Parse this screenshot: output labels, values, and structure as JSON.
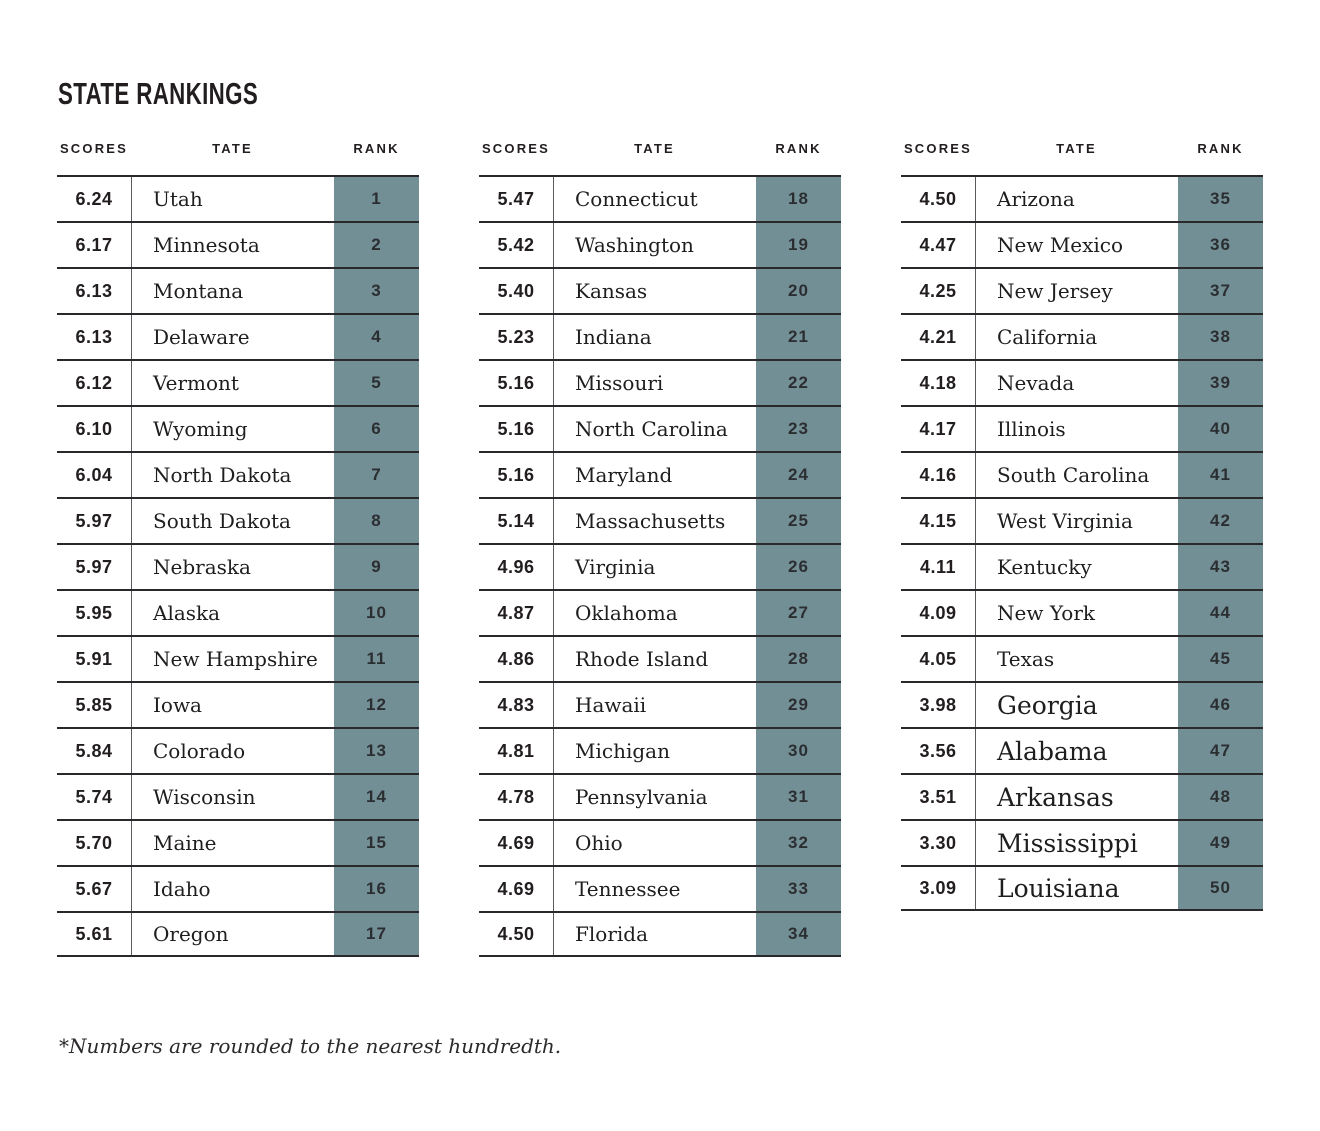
{
  "title": "STATE RANKINGS",
  "footnote": "*Numbers are rounded to the nearest hundredth.",
  "column_headers": {
    "scores": "SCORES",
    "state": "TATE",
    "rank": "RANK"
  },
  "colors": {
    "rank_cell_bg": "#738F96",
    "text": "#231F20",
    "row_line": "#2A282B"
  },
  "chart_data": {
    "type": "table",
    "title": "STATE RANKINGS",
    "columns": [
      "SCORES",
      "TATE",
      "RANK"
    ],
    "footnote": "*Numbers are rounded to the nearest hundredth.",
    "tables": [
      {
        "rows": [
          {
            "score": "6.24",
            "state": "Utah",
            "rank": "1"
          },
          {
            "score": "6.17",
            "state": "Minnesota",
            "rank": "2"
          },
          {
            "score": "6.13",
            "state": "Montana",
            "rank": "3"
          },
          {
            "score": "6.13",
            "state": "Delaware",
            "rank": "4"
          },
          {
            "score": "6.12",
            "state": "Vermont",
            "rank": "5"
          },
          {
            "score": "6.10",
            "state": "Wyoming",
            "rank": "6"
          },
          {
            "score": "6.04",
            "state": "North Dakota",
            "rank": "7"
          },
          {
            "score": "5.97",
            "state": "South Dakota",
            "rank": "8"
          },
          {
            "score": "5.97",
            "state": "Nebraska",
            "rank": "9"
          },
          {
            "score": "5.95",
            "state": "Alaska",
            "rank": "10"
          },
          {
            "score": "5.91",
            "state": "New Hampshire",
            "rank": "11"
          },
          {
            "score": "5.85",
            "state": "Iowa",
            "rank": "12"
          },
          {
            "score": "5.84",
            "state": "Colorado",
            "rank": "13"
          },
          {
            "score": "5.74",
            "state": "Wisconsin",
            "rank": "14"
          },
          {
            "score": "5.70",
            "state": "Maine",
            "rank": "15"
          },
          {
            "score": "5.67",
            "state": "Idaho",
            "rank": "16"
          },
          {
            "score": "5.61",
            "state": "Oregon",
            "rank": "17"
          }
        ]
      },
      {
        "rows": [
          {
            "score": "5.47",
            "state": "Connecticut",
            "rank": "18"
          },
          {
            "score": "5.42",
            "state": "Washington",
            "rank": "19"
          },
          {
            "score": "5.40",
            "state": "Kansas",
            "rank": "20"
          },
          {
            "score": "5.23",
            "state": "Indiana",
            "rank": "21"
          },
          {
            "score": "5.16",
            "state": "Missouri",
            "rank": "22"
          },
          {
            "score": "5.16",
            "state": "North Carolina",
            "rank": "23"
          },
          {
            "score": "5.16",
            "state": "Maryland",
            "rank": "24"
          },
          {
            "score": "5.14",
            "state": "Massachusetts",
            "rank": "25"
          },
          {
            "score": "4.96",
            "state": "Virginia",
            "rank": "26"
          },
          {
            "score": "4.87",
            "state": "Oklahoma",
            "rank": "27"
          },
          {
            "score": "4.86",
            "state": "Rhode Island",
            "rank": "28"
          },
          {
            "score": "4.83",
            "state": "Hawaii",
            "rank": "29"
          },
          {
            "score": "4.81",
            "state": "Michigan",
            "rank": "30"
          },
          {
            "score": "4.78",
            "state": "Pennsylvania",
            "rank": "31"
          },
          {
            "score": "4.69",
            "state": "Ohio",
            "rank": "32"
          },
          {
            "score": "4.69",
            "state": "Tennessee",
            "rank": "33"
          },
          {
            "score": "4.50",
            "state": "Florida",
            "rank": "34"
          }
        ]
      },
      {
        "rows": [
          {
            "score": "4.50",
            "state": "Arizona",
            "rank": "35"
          },
          {
            "score": "4.47",
            "state": "New Mexico",
            "rank": "36"
          },
          {
            "score": "4.25",
            "state": "New Jersey",
            "rank": "37"
          },
          {
            "score": "4.21",
            "state": "California",
            "rank": "38"
          },
          {
            "score": "4.18",
            "state": "Nevada",
            "rank": "39"
          },
          {
            "score": "4.17",
            "state": "Illinois",
            "rank": "40"
          },
          {
            "score": "4.16",
            "state": "South Carolina",
            "rank": "41"
          },
          {
            "score": "4.15",
            "state": "West Virginia",
            "rank": "42"
          },
          {
            "score": "4.11",
            "state": "Kentucky",
            "rank": "43"
          },
          {
            "score": "4.09",
            "state": "New York",
            "rank": "44"
          },
          {
            "score": "4.05",
            "state": "Texas",
            "rank": "45"
          },
          {
            "score": "3.98",
            "state": "Georgia",
            "rank": "46",
            "large": true
          },
          {
            "score": "3.56",
            "state": "Alabama",
            "rank": "47",
            "large": true
          },
          {
            "score": "3.51",
            "state": "Arkansas",
            "rank": "48",
            "large": true
          },
          {
            "score": "3.30",
            "state": "Mississippi",
            "rank": "49",
            "large": true
          },
          {
            "score": "3.09",
            "state": "Louisiana",
            "rank": "50",
            "large": true
          }
        ]
      }
    ]
  }
}
